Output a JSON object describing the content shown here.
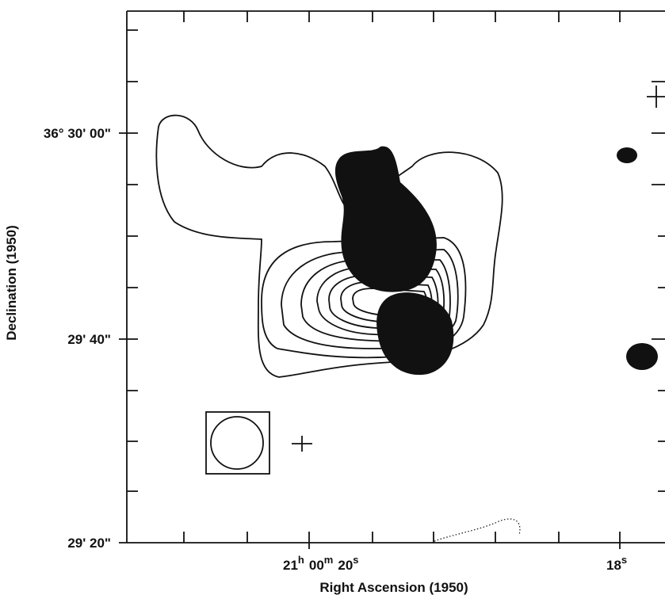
{
  "axes": {
    "y_label": "Declination (1950)",
    "x_label": "Right Ascension (1950)",
    "y_ticks": [
      {
        "parts": [
          "36°",
          "30'",
          "00\""
        ]
      },
      {
        "parts": [
          "29'",
          "40\""
        ]
      },
      {
        "parts": [
          "29'",
          "20\""
        ]
      }
    ],
    "x_ticks": [
      {
        "parts": [
          "21",
          "h",
          "00",
          "m",
          "20",
          "s"
        ]
      },
      {
        "parts": [
          "18",
          "s"
        ]
      }
    ]
  }
}
